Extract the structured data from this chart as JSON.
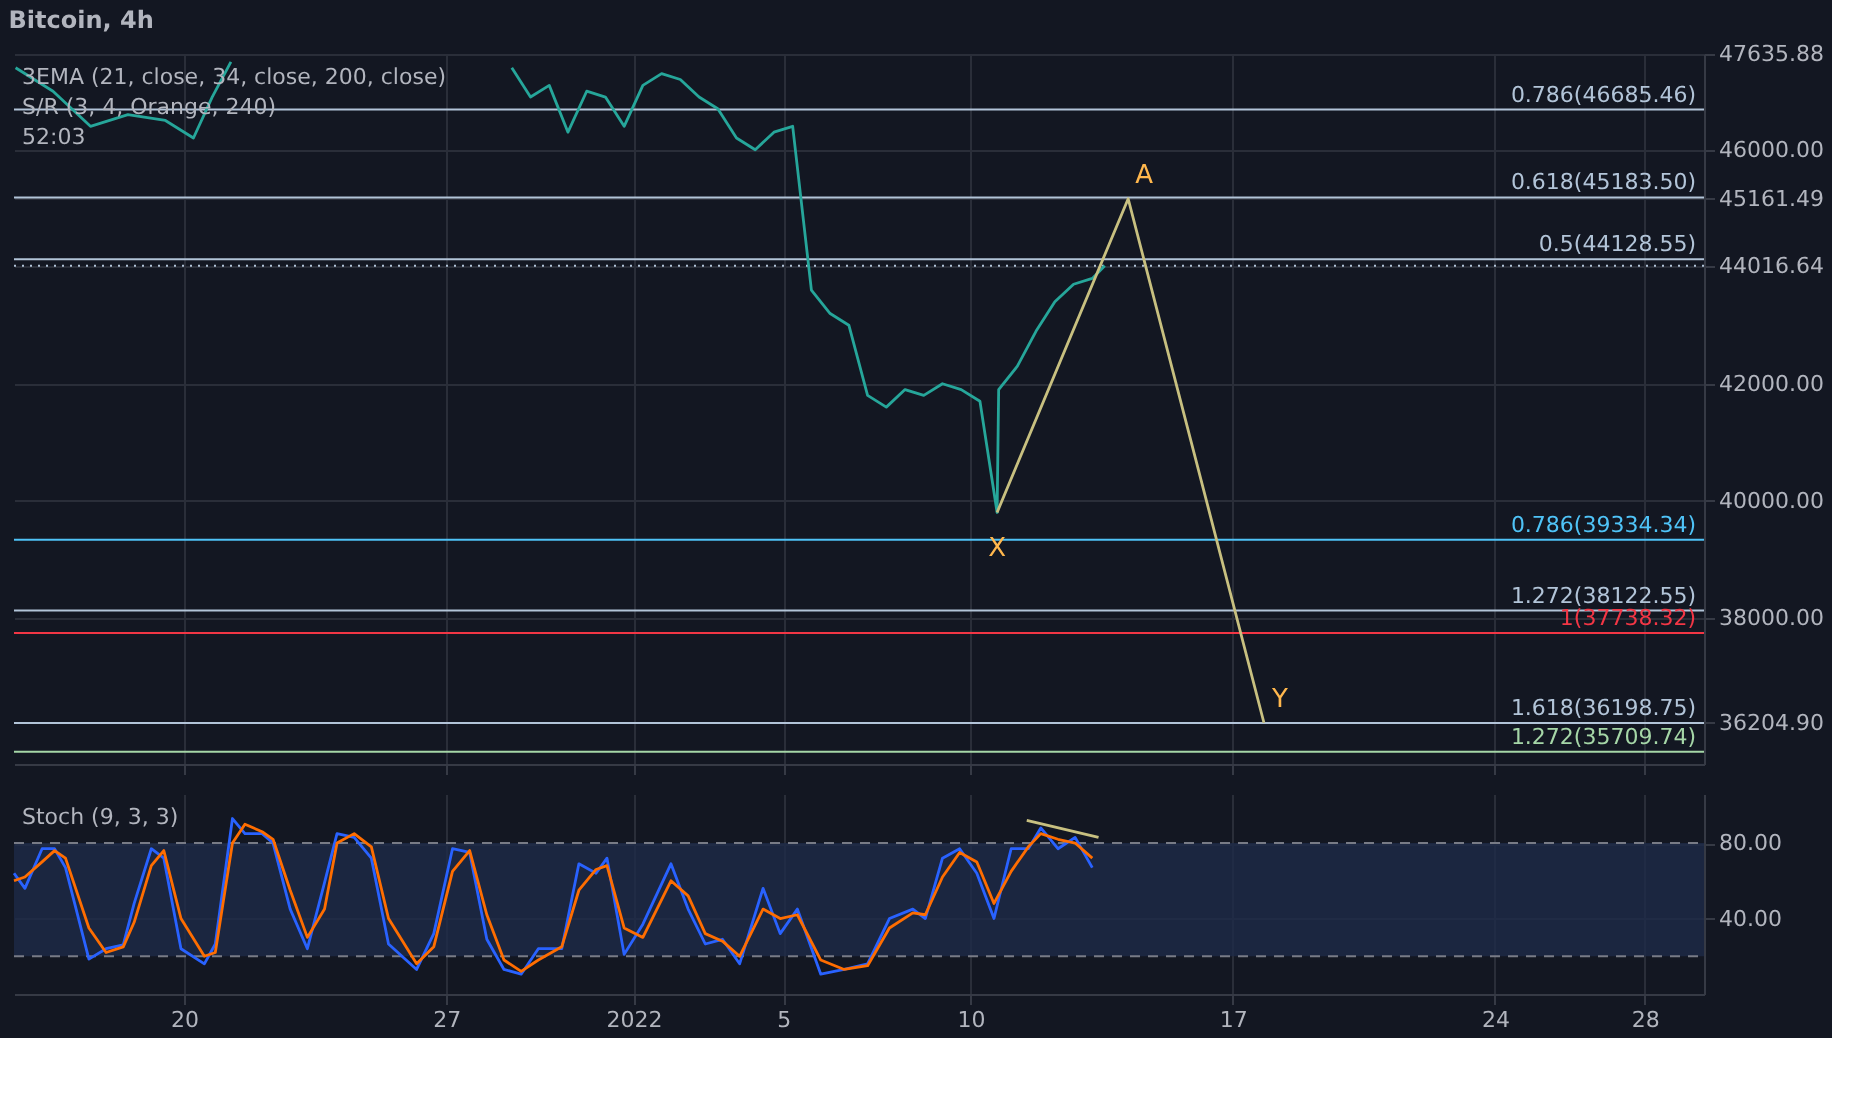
{
  "chart_data": [
    {
      "type": "line",
      "title": "Bitcoin, 4h",
      "annotations": [
        "3EMA (21, close, 34, close, 200, close)",
        "S/R (3, 4, Orange, 240)",
        "52:03",
        {
          "text": "A",
          "x": "2022-01-14T05:00",
          "y": 45161.49
        },
        {
          "text": "X",
          "x": "2022-01-10T17:00",
          "y": 39800
        },
        {
          "text": "Y",
          "x": "2022-01-17T20:00",
          "y": 36204.9
        }
      ],
      "xlim": [
        "2021-12-15T11:00",
        "2022-01-29T14:00"
      ],
      "xticks": [
        {
          "value": "2021-12-20",
          "label": null
        },
        {
          "value": "2021-12-27",
          "label": null
        },
        {
          "value": "2022-01-01",
          "label": null
        },
        {
          "value": "2022-01-05",
          "label": null
        },
        {
          "value": "2022-01-10",
          "label": null
        },
        {
          "value": "2022-01-17",
          "label": null
        },
        {
          "value": "2022-01-24",
          "label": null
        },
        {
          "value": "2022-01-28",
          "label": null
        }
      ],
      "ylim": [
        35500,
        47636
      ],
      "yticks": [
        {
          "value": 36204.9,
          "label": "36204.90"
        },
        {
          "value": 38000,
          "label": "38000.00"
        },
        {
          "value": 40000,
          "label": "40000.00"
        },
        {
          "value": 42000,
          "label": "42000.00"
        },
        {
          "value": 44016.64,
          "label": "44016.64"
        },
        {
          "value": 45161.49,
          "label": "45161.49"
        },
        {
          "value": 46000,
          "label": "46000.00"
        },
        {
          "value": 47635.88,
          "label": "47635.88"
        }
      ],
      "tick_labels": "y",
      "grid": true,
      "series": [
        {
          "color": "#26a69a",
          "x": [
            "2021-12-15T12:00",
            "2021-12-16T12:00",
            "2021-12-17T12:00",
            "2021-12-18T12:00",
            "2021-12-19T12:00",
            "2021-12-20T06:00",
            "2021-12-20T18:00",
            "2021-12-21T06:00",
            "2021-12-21T12:00",
            "2021-12-28T18:00",
            "2021-12-29T06:00",
            "2021-12-29T18:00",
            "2021-12-30T06:00",
            "2021-12-30T18:00",
            "2021-12-31T06:00",
            "2021-12-31T18:00",
            "2022-01-01T06:00",
            "2022-01-01T18:00",
            "2022-01-02T06:00",
            "2022-01-02T18:00",
            "2022-01-03T06:00",
            "2022-01-03T18:00",
            "2022-01-04T06:00",
            "2022-01-04T18:00",
            "2022-01-05T06:00",
            "2022-01-05T18:00",
            "2022-01-06T06:00",
            "2022-01-06T18:00",
            "2022-01-07T06:00",
            "2022-01-07T18:00",
            "2022-01-08T06:00",
            "2022-01-08T18:00",
            "2022-01-09T06:00",
            "2022-01-09T18:00",
            "2022-01-10T06:00",
            "2022-01-10T17:00",
            "2022-01-10T18:00",
            "2022-01-11T06:00",
            "2022-01-11T18:00",
            "2022-01-12T06:00",
            "2022-01-12T18:00",
            "2022-01-13T06:00",
            "2022-01-13T14:00"
          ],
          "values": [
            47400,
            47000,
            46400,
            46600,
            46500,
            46200,
            46900,
            47500,
            null,
            47400,
            46900,
            47100,
            46300,
            47000,
            46900,
            46400,
            47100,
            47300,
            47200,
            46900,
            46700,
            46200,
            46000,
            46300,
            46400,
            43600,
            43200,
            43000,
            41800,
            41600,
            41900,
            41800,
            42000,
            41900,
            41700,
            39800,
            41900,
            42300,
            42900,
            43400,
            43700,
            43800,
            44016.64
          ]
        },
        {
          "color": "#c8c080",
          "x": [
            "2022-01-10T17:00",
            "2022-01-14T05:00",
            "2022-01-17T20:00"
          ],
          "values": [
            39800,
            45161.49,
            36204.9
          ]
        }
      ],
      "ref_lines": [
        {
          "axis": "y",
          "value": 46685.46,
          "label": "0.786(46685.46)",
          "color": "#b2c4d8"
        },
        {
          "axis": "y",
          "value": 45183.5,
          "label": "0.618(45183.50)",
          "color": "#b2c4d8"
        },
        {
          "axis": "y",
          "value": 44128.55,
          "label": "0.5(44128.55)",
          "color": "#b2c4d8"
        },
        {
          "axis": "y",
          "value": 44016.64,
          "color": "#b2c4d8",
          "line_style": "dotted"
        },
        {
          "axis": "y",
          "value": 39334.34,
          "label": "0.786(39334.34)",
          "color": "#4fc3f7"
        },
        {
          "axis": "y",
          "value": 38122.55,
          "label": "1.272(38122.55)",
          "color": "#b2c4d8"
        },
        {
          "axis": "y",
          "value": 37738.32,
          "label": "1(37738.32)",
          "color": "#f23645"
        },
        {
          "axis": "y",
          "value": 36198.75,
          "label": "1.618(36198.75)",
          "color": "#b2c4d8"
        },
        {
          "axis": "y",
          "value": 35709.74,
          "label": "1.272(35709.74)",
          "color": "#a5d6a7"
        }
      ]
    },
    {
      "type": "line",
      "annotations": [
        "Stoch (9, 3, 3)"
      ],
      "xlim": [
        "2021-12-15T11:00",
        "2022-01-29T14:00"
      ],
      "xticks": [
        {
          "value": "2021-12-20",
          "label": "20"
        },
        {
          "value": "2021-12-27",
          "label": "27"
        },
        {
          "value": "2022-01-01",
          "label": "2022"
        },
        {
          "value": "2022-01-05",
          "label": "5"
        },
        {
          "value": "2022-01-10",
          "label": "10"
        },
        {
          "value": "2022-01-17",
          "label": "17"
        },
        {
          "value": "2022-01-24",
          "label": "24"
        },
        {
          "value": "2022-01-28",
          "label": "28"
        }
      ],
      "ylim": [
        0,
        106
      ],
      "yticks": [
        {
          "value": 40,
          "label": "40.00"
        },
        {
          "value": 80,
          "label": "80.00"
        }
      ],
      "grid": true,
      "x": [
        "2021-12-15T11:00",
        "2021-12-15T18:00",
        "2021-12-16T05:00",
        "2021-12-16T13:00",
        "2021-12-16T20:00",
        "2021-12-17T11:00",
        "2021-12-17T22:00",
        "2021-12-18T09:00",
        "2021-12-18T16:00",
        "2021-12-19T03:00",
        "2021-12-19T11:00",
        "2021-12-19T22:00",
        "2021-12-20T13:00",
        "2021-12-20T20:00",
        "2021-12-21T07:00",
        "2021-12-21T15:00",
        "2021-12-22T02:00",
        "2021-12-22T09:00",
        "2021-12-22T20:00",
        "2021-12-23T07:00",
        "2021-12-23T18:00",
        "2021-12-24T02:00",
        "2021-12-24T13:00",
        "2021-12-25T00:00",
        "2021-12-25T11:00",
        "2021-12-26T05:00",
        "2021-12-26T16:00",
        "2021-12-27T04:00",
        "2021-12-27T15:00",
        "2021-12-28T02:00",
        "2021-12-28T13:00",
        "2021-12-29T00:00",
        "2021-12-29T11:00",
        "2021-12-30T02:00",
        "2021-12-30T13:00",
        "2021-12-31T00:00",
        "2021-12-31T07:00",
        "2021-12-31T18:00",
        "2022-01-01T06:00",
        "2022-01-02T00:00",
        "2022-01-02T11:00",
        "2022-01-02T22:00",
        "2022-01-03T09:00",
        "2022-01-03T20:00",
        "2022-01-04T11:00",
        "2022-01-04T22:00",
        "2022-01-05T09:00",
        "2022-01-06T00:00",
        "2022-01-06T15:00",
        "2022-01-07T06:00",
        "2022-01-07T20:00",
        "2022-01-08T11:00",
        "2022-01-08T19:00",
        "2022-01-09T06:00",
        "2022-01-09T17:00",
        "2022-01-10T04:00",
        "2022-01-10T15:00",
        "2022-01-11T02:00",
        "2022-01-11T13:00",
        "2022-01-11T21:00",
        "2022-01-12T08:00",
        "2022-01-12T19:00",
        "2022-01-13T06:00"
      ],
      "series": [
        {
          "color": "#2962ff",
          "values": [
            64,
            56,
            77,
            77,
            67,
            18.5,
            24,
            26,
            48,
            77,
            72,
            24,
            16,
            26.5,
            93,
            85,
            85,
            80,
            45,
            24,
            59,
            85,
            83,
            72,
            26.5,
            13,
            32,
            77,
            75,
            29,
            13,
            10.5,
            24,
            24,
            69,
            64,
            72,
            21,
            37,
            69,
            45,
            26.5,
            29,
            16,
            56,
            32,
            45,
            10.5,
            13,
            16,
            40,
            45,
            40,
            72,
            77,
            64,
            40,
            77,
            77,
            88,
            77,
            83,
            67
          ]
        },
        {
          "color": "#ff6d00",
          "values": [
            60,
            62,
            70,
            76,
            72,
            35,
            22,
            25,
            38,
            68,
            76,
            40,
            20,
            22,
            80,
            90,
            86,
            82,
            55,
            30,
            45,
            80,
            85,
            78,
            40,
            16,
            25,
            65,
            76,
            42,
            18,
            12,
            18,
            25,
            55,
            66,
            68,
            35,
            30,
            60,
            52,
            32,
            28,
            20,
            45,
            40,
            42,
            18,
            13,
            15,
            35,
            43,
            42,
            62,
            75,
            70,
            48,
            65,
            78,
            85,
            82,
            80,
            72
          ]
        },
        {
          "type": "line",
          "color": "#c8c080",
          "x": [
            "2022-01-11T12:00",
            "2022-01-13T10:00"
          ],
          "values": [
            92,
            83
          ]
        }
      ],
      "ref_lines": [
        {
          "axis": "y",
          "value": 80,
          "color": "#787b86",
          "line_style": "dashed"
        },
        {
          "axis": "y",
          "value": 20,
          "color": "#787b86",
          "line_style": "dashed"
        }
      ],
      "bands": [
        {
          "axis": "y",
          "from": 20,
          "to": 80,
          "color": "#1e2a48"
        }
      ]
    }
  ]
}
